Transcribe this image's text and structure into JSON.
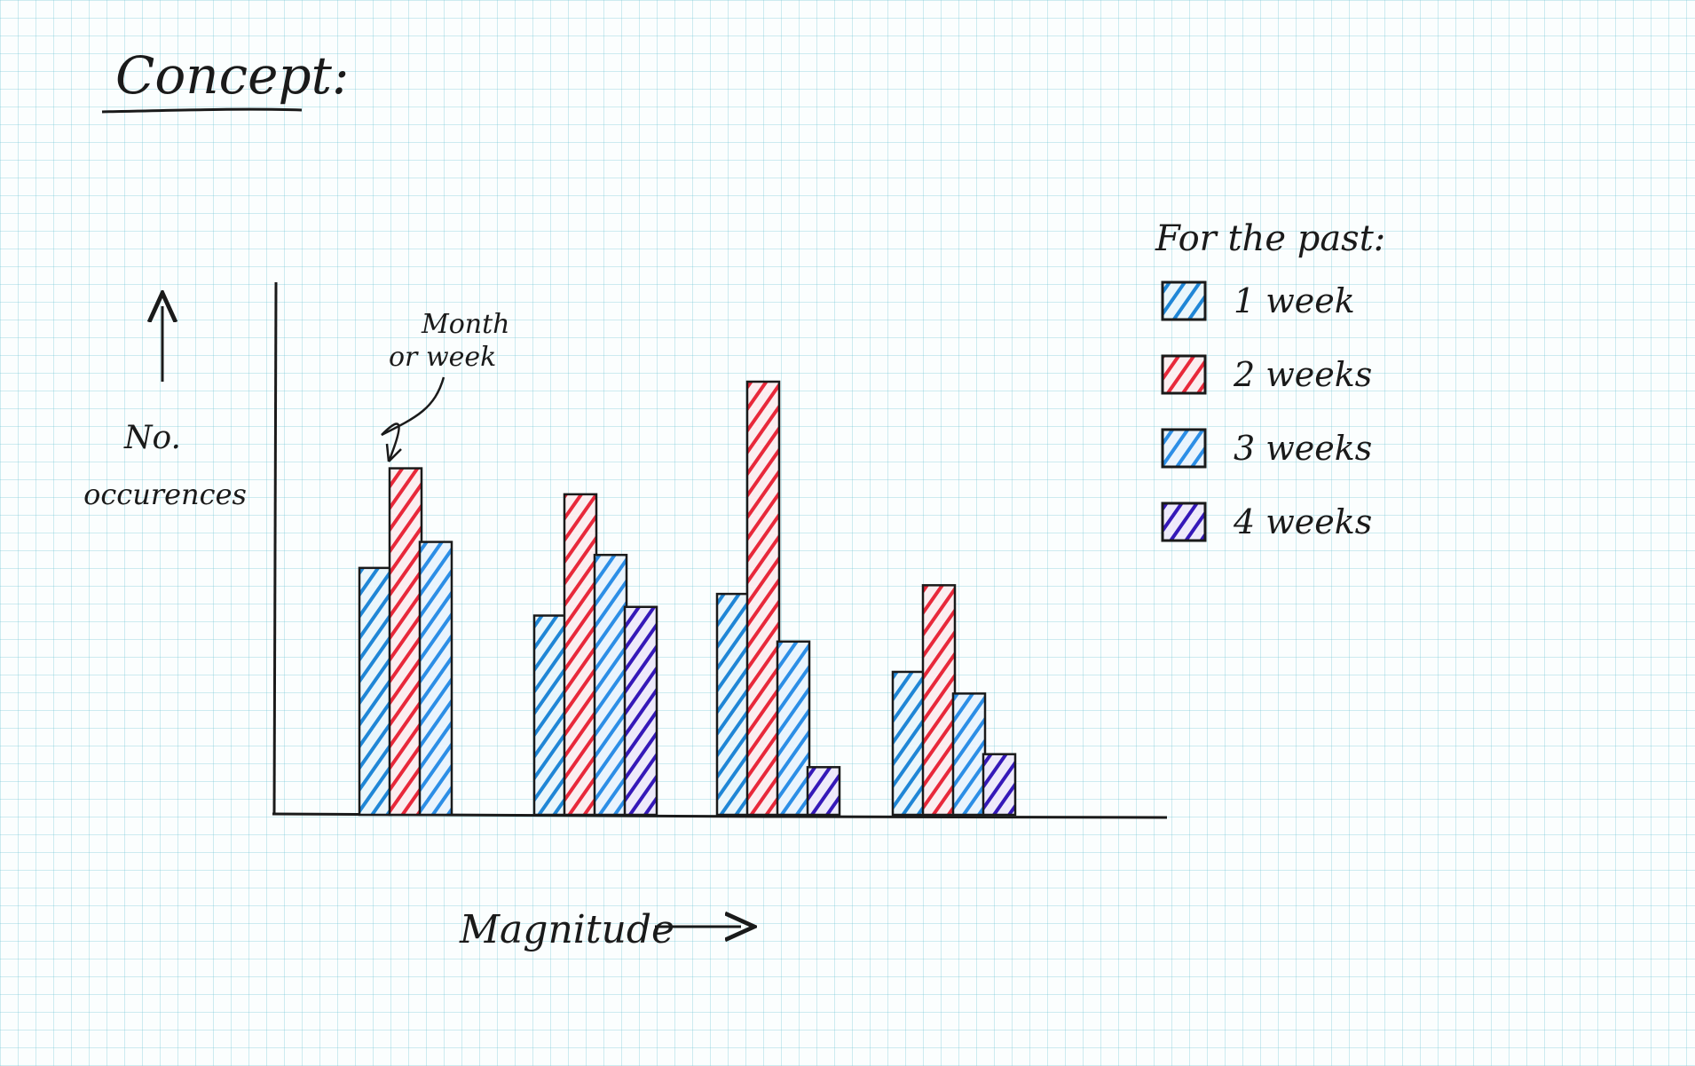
{
  "page": {
    "title": "Concept:",
    "annotation": [
      "Month",
      "or week"
    ]
  },
  "chart_data": {
    "type": "bar",
    "title": "",
    "xlabel": "Magnitude",
    "ylabel": [
      "No.",
      "occurences"
    ],
    "categories": [
      "",
      "",
      "",
      ""
    ],
    "ylim": [
      0,
      100
    ],
    "grid": false,
    "legend": {
      "title": "For the past:",
      "placement": "right"
    },
    "series": [
      {
        "name": "1 week",
        "color": "#1f86d6",
        "values": [
          57,
          46,
          51,
          33
        ]
      },
      {
        "name": "2 weeks",
        "color": "#e8283a",
        "values": [
          80,
          74,
          100,
          53
        ]
      },
      {
        "name": "3 weeks",
        "color": "#2c8ee6",
        "values": [
          63,
          60,
          40,
          28
        ]
      },
      {
        "name": "4 weeks",
        "color": "#3518b8",
        "values": [
          0,
          48,
          11,
          14
        ]
      }
    ]
  }
}
